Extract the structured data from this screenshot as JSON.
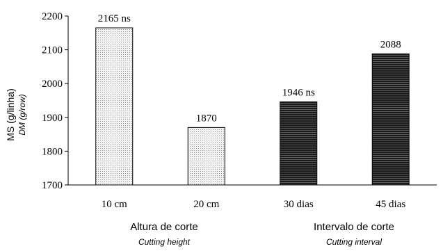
{
  "chart_data": {
    "type": "bar",
    "categories": [
      "10 cm",
      "20 cm",
      "30 dias",
      "45 dias"
    ],
    "values": [
      2165,
      1870,
      1946,
      2088
    ],
    "data_labels": [
      "2165 ns",
      "1870",
      "1946 ns",
      "2088"
    ],
    "fills": [
      "light-dotted",
      "light-dotted",
      "dark-hatched",
      "dark-hatched"
    ],
    "ylim": [
      1700,
      2200
    ],
    "yticks": [
      1700,
      1800,
      1900,
      2000,
      2100,
      2200
    ],
    "ylabel": "MS (g/linha)",
    "ylabel_sub": "DM (g/row)",
    "groups": [
      {
        "label": "Altura de corte",
        "sublabel": "Cutting height",
        "categories": [
          "10 cm",
          "20 cm"
        ]
      },
      {
        "label": "Intervalo de corte",
        "sublabel": "Cutting interval",
        "categories": [
          "30 dias",
          "45 dias"
        ]
      }
    ],
    "grid": false,
    "legend": "none"
  },
  "colors": {
    "light_bar_bg": "#f2f2f2",
    "light_bar_pattern": "#9a9a9a",
    "dark_bar_bg": "#1a1a1a",
    "dark_bar_pattern": "#5a5a5a",
    "axis": "#000000"
  }
}
